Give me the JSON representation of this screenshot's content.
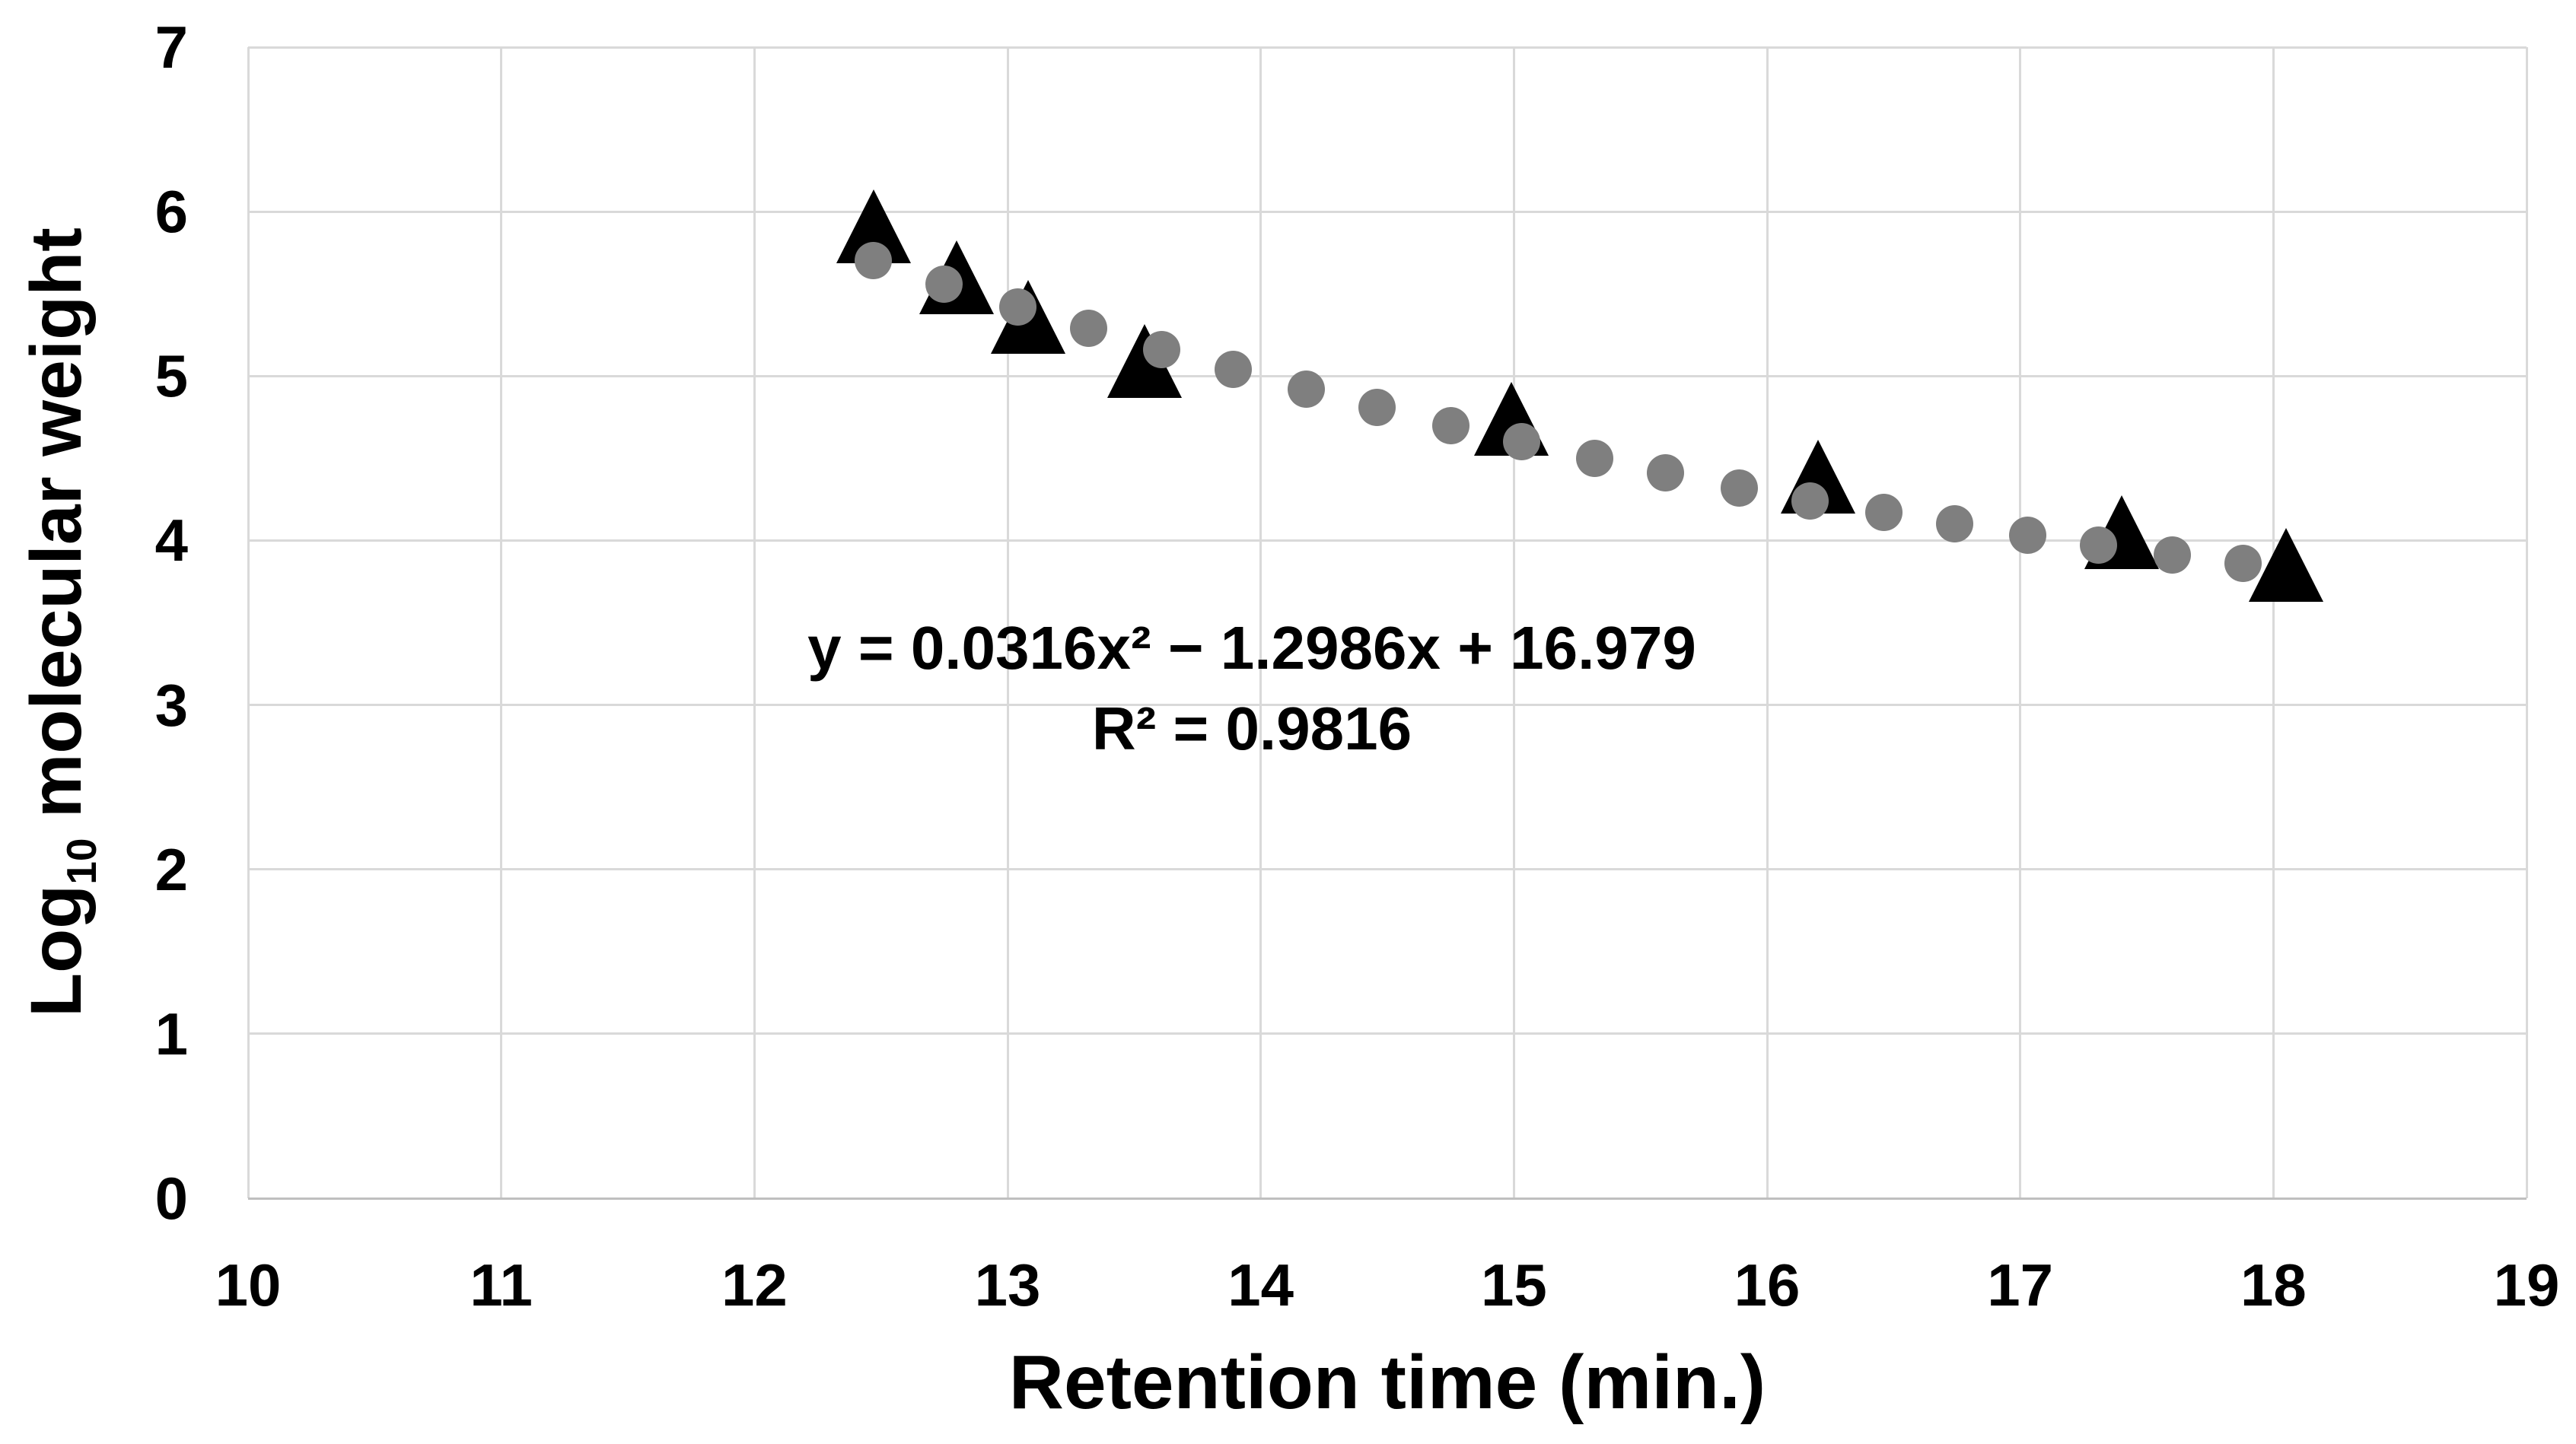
{
  "chart_data": {
    "type": "scatter",
    "title": "",
    "xlabel": "Retention time (min.)",
    "ylabel": "Log10 molecular weight",
    "ylabel_parts": {
      "prefix": "Log",
      "subscript": "10",
      "suffix": " molecular weight"
    },
    "xlim": [
      10,
      19
    ],
    "ylim": [
      0,
      7
    ],
    "x_ticks": [
      10,
      11,
      12,
      13,
      14,
      15,
      16,
      17,
      18,
      19
    ],
    "y_ticks": [
      0,
      1,
      2,
      3,
      4,
      5,
      6,
      7
    ],
    "grid": true,
    "legend_position": "none",
    "annotation": {
      "line1": "y = 0.0316x² − 1.2986x + 16.979",
      "line2": "R² = 0.9816"
    },
    "series": [
      {
        "name": "black triangles",
        "marker": "triangle",
        "color": "#000000",
        "points": [
          [
            12.47,
            5.91
          ],
          [
            12.8,
            5.6
          ],
          [
            13.08,
            5.36
          ],
          [
            13.54,
            5.09
          ],
          [
            14.99,
            4.74
          ],
          [
            16.2,
            4.39
          ],
          [
            17.4,
            4.05
          ],
          [
            18.05,
            3.85
          ]
        ]
      },
      {
        "name": "gray circles",
        "marker": "circle",
        "color": "#7f7f7f",
        "points": [
          [
            12.47,
            5.7
          ],
          [
            12.75,
            5.56
          ],
          [
            13.04,
            5.42
          ],
          [
            13.32,
            5.29
          ],
          [
            13.61,
            5.16
          ],
          [
            13.89,
            5.04
          ],
          [
            14.18,
            4.92
          ],
          [
            14.46,
            4.81
          ],
          [
            14.75,
            4.7
          ],
          [
            15.03,
            4.6
          ],
          [
            15.32,
            4.5
          ],
          [
            15.6,
            4.41
          ],
          [
            15.89,
            4.32
          ],
          [
            16.17,
            4.24
          ],
          [
            16.46,
            4.17
          ],
          [
            16.74,
            4.1
          ],
          [
            17.03,
            4.03
          ],
          [
            17.31,
            3.97
          ],
          [
            17.6,
            3.91
          ],
          [
            17.88,
            3.86
          ]
        ]
      }
    ]
  },
  "colors": {
    "background": "#ffffff",
    "gridline": "#d9d9d9",
    "axis_line": "#bfbfbf",
    "text": "#000000",
    "circle": "#7f7f7f",
    "triangle": "#000000"
  }
}
